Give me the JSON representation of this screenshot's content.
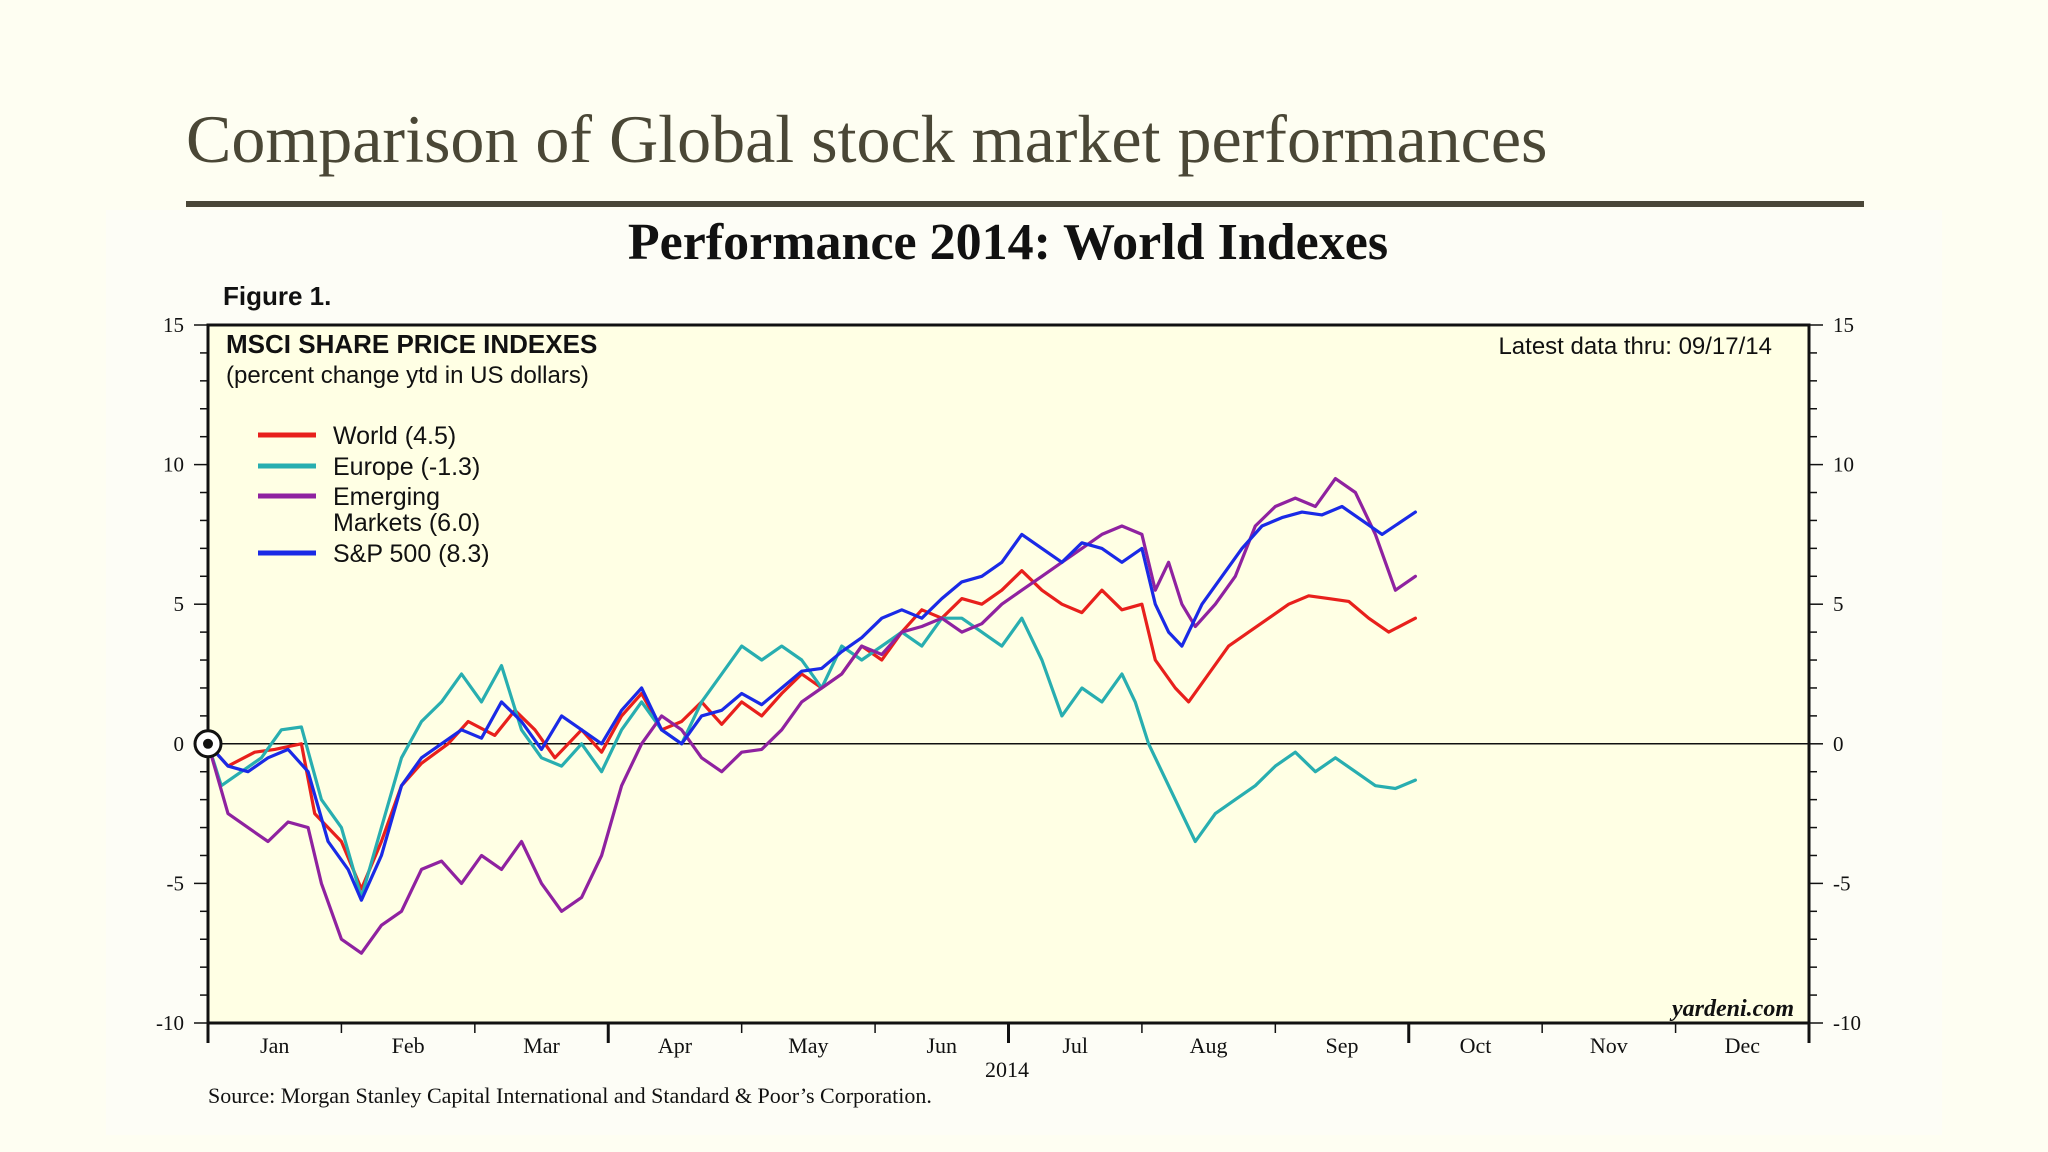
{
  "slide": {
    "title": "Comparison of Global stock market performances"
  },
  "chart_data": {
    "type": "line",
    "title": "Performance 2014: World Indexes",
    "figure_label": "Figure 1.",
    "subtitle": "MSCI SHARE PRICE INDEXES",
    "subtitle2": "(percent change ytd in US dollars)",
    "latest": "Latest data thru: 09/17/14",
    "watermark": "yardeni.com",
    "source": "Source: Morgan Stanley Capital International and Standard & Poor’s Corporation.",
    "xlabel": "2014",
    "x_domain": [
      0,
      12
    ],
    "ylim": [
      -10,
      15
    ],
    "yticks": [
      "15",
      "10",
      "5",
      "0",
      "-5",
      "-10"
    ],
    "ytick_values": [
      15,
      10,
      5,
      0,
      -5,
      -10
    ],
    "months": [
      "Jan",
      "Feb",
      "Mar",
      "Apr",
      "May",
      "Jun",
      "Jul",
      "Aug",
      "Sep",
      "Oct",
      "Nov",
      "Dec"
    ],
    "grid": false,
    "legend_position": "top-left",
    "series": [
      {
        "name": "World (4.5)",
        "color": "#e8201c",
        "points": [
          [
            0,
            0
          ],
          [
            0.15,
            -0.8
          ],
          [
            0.35,
            -0.3
          ],
          [
            0.5,
            -0.2
          ],
          [
            0.7,
            0
          ],
          [
            0.8,
            -2.5
          ],
          [
            1,
            -3.5
          ],
          [
            1.15,
            -5.2
          ],
          [
            1.3,
            -3.5
          ],
          [
            1.45,
            -1.5
          ],
          [
            1.6,
            -0.7
          ],
          [
            1.8,
            0
          ],
          [
            1.95,
            0.8
          ],
          [
            2.15,
            0.3
          ],
          [
            2.3,
            1.2
          ],
          [
            2.45,
            0.5
          ],
          [
            2.6,
            -0.5
          ],
          [
            2.8,
            0.5
          ],
          [
            2.95,
            -0.3
          ],
          [
            3.1,
            1
          ],
          [
            3.25,
            1.8
          ],
          [
            3.4,
            0.5
          ],
          [
            3.55,
            0.8
          ],
          [
            3.7,
            1.5
          ],
          [
            3.85,
            0.7
          ],
          [
            4,
            1.5
          ],
          [
            4.15,
            1
          ],
          [
            4.3,
            1.8
          ],
          [
            4.45,
            2.5
          ],
          [
            4.6,
            2
          ],
          [
            4.75,
            2.5
          ],
          [
            4.9,
            3.5
          ],
          [
            5.05,
            3
          ],
          [
            5.2,
            4
          ],
          [
            5.35,
            4.8
          ],
          [
            5.5,
            4.5
          ],
          [
            5.65,
            5.2
          ],
          [
            5.8,
            5
          ],
          [
            5.95,
            5.5
          ],
          [
            6.1,
            6.2
          ],
          [
            6.25,
            5.5
          ],
          [
            6.4,
            5
          ],
          [
            6.55,
            4.7
          ],
          [
            6.7,
            5.5
          ],
          [
            6.85,
            4.8
          ],
          [
            7,
            5
          ],
          [
            7.1,
            3
          ],
          [
            7.25,
            2
          ],
          [
            7.35,
            1.5
          ],
          [
            7.5,
            2.5
          ],
          [
            7.65,
            3.5
          ],
          [
            7.8,
            4
          ],
          [
            7.95,
            4.5
          ],
          [
            8.1,
            5
          ],
          [
            8.25,
            5.3
          ],
          [
            8.4,
            5.2
          ],
          [
            8.55,
            5.1
          ],
          [
            8.7,
            4.5
          ],
          [
            8.85,
            4
          ],
          [
            9.05,
            4.5
          ]
        ]
      },
      {
        "name": "Europe (-1.3)",
        "color": "#28aeb0",
        "points": [
          [
            0,
            0
          ],
          [
            0.1,
            -1.5
          ],
          [
            0.25,
            -1
          ],
          [
            0.4,
            -0.5
          ],
          [
            0.55,
            0.5
          ],
          [
            0.7,
            0.6
          ],
          [
            0.85,
            -2
          ],
          [
            1,
            -3
          ],
          [
            1.15,
            -5.5
          ],
          [
            1.3,
            -3
          ],
          [
            1.45,
            -0.5
          ],
          [
            1.6,
            0.8
          ],
          [
            1.75,
            1.5
          ],
          [
            1.9,
            2.5
          ],
          [
            2.05,
            1.5
          ],
          [
            2.2,
            2.8
          ],
          [
            2.35,
            0.5
          ],
          [
            2.5,
            -0.5
          ],
          [
            2.65,
            -0.8
          ],
          [
            2.8,
            0
          ],
          [
            2.95,
            -1
          ],
          [
            3.1,
            0.5
          ],
          [
            3.25,
            1.5
          ],
          [
            3.4,
            0.5
          ],
          [
            3.55,
            0
          ],
          [
            3.7,
            1.5
          ],
          [
            3.85,
            2.5
          ],
          [
            4,
            3.5
          ],
          [
            4.15,
            3
          ],
          [
            4.3,
            3.5
          ],
          [
            4.45,
            3
          ],
          [
            4.6,
            2
          ],
          [
            4.75,
            3.5
          ],
          [
            4.9,
            3
          ],
          [
            5.05,
            3.5
          ],
          [
            5.2,
            4
          ],
          [
            5.35,
            3.5
          ],
          [
            5.5,
            4.5
          ],
          [
            5.65,
            4.5
          ],
          [
            5.8,
            4
          ],
          [
            5.95,
            3.5
          ],
          [
            6.1,
            4.5
          ],
          [
            6.25,
            3
          ],
          [
            6.4,
            1
          ],
          [
            6.55,
            2
          ],
          [
            6.7,
            1.5
          ],
          [
            6.85,
            2.5
          ],
          [
            6.95,
            1.5
          ],
          [
            7.05,
            0
          ],
          [
            7.2,
            -1.5
          ],
          [
            7.3,
            -2.5
          ],
          [
            7.4,
            -3.5
          ],
          [
            7.55,
            -2.5
          ],
          [
            7.7,
            -2
          ],
          [
            7.85,
            -1.5
          ],
          [
            8,
            -0.8
          ],
          [
            8.15,
            -0.3
          ],
          [
            8.3,
            -1
          ],
          [
            8.45,
            -0.5
          ],
          [
            8.6,
            -1
          ],
          [
            8.75,
            -1.5
          ],
          [
            8.9,
            -1.6
          ],
          [
            9.05,
            -1.3
          ]
        ]
      },
      {
        "name": "Emerging Markets (6.0)",
        "color": "#8f22a0",
        "points": [
          [
            0,
            0
          ],
          [
            0.15,
            -2.5
          ],
          [
            0.3,
            -3
          ],
          [
            0.45,
            -3.5
          ],
          [
            0.6,
            -2.8
          ],
          [
            0.75,
            -3
          ],
          [
            0.85,
            -5
          ],
          [
            1,
            -7
          ],
          [
            1.15,
            -7.5
          ],
          [
            1.3,
            -6.5
          ],
          [
            1.45,
            -6
          ],
          [
            1.6,
            -4.5
          ],
          [
            1.75,
            -4.2
          ],
          [
            1.9,
            -5
          ],
          [
            2.05,
            -4
          ],
          [
            2.2,
            -4.5
          ],
          [
            2.35,
            -3.5
          ],
          [
            2.5,
            -5
          ],
          [
            2.65,
            -6
          ],
          [
            2.8,
            -5.5
          ],
          [
            2.95,
            -4
          ],
          [
            3.1,
            -1.5
          ],
          [
            3.25,
            0
          ],
          [
            3.4,
            1
          ],
          [
            3.55,
            0.5
          ],
          [
            3.7,
            -0.5
          ],
          [
            3.85,
            -1
          ],
          [
            4,
            -0.3
          ],
          [
            4.15,
            -0.2
          ],
          [
            4.3,
            0.5
          ],
          [
            4.45,
            1.5
          ],
          [
            4.6,
            2
          ],
          [
            4.75,
            2.5
          ],
          [
            4.9,
            3.5
          ],
          [
            5.05,
            3.2
          ],
          [
            5.2,
            4
          ],
          [
            5.35,
            4.2
          ],
          [
            5.5,
            4.5
          ],
          [
            5.65,
            4
          ],
          [
            5.8,
            4.3
          ],
          [
            5.95,
            5
          ],
          [
            6.1,
            5.5
          ],
          [
            6.25,
            6
          ],
          [
            6.4,
            6.5
          ],
          [
            6.55,
            7
          ],
          [
            6.7,
            7.5
          ],
          [
            6.85,
            7.8
          ],
          [
            7,
            7.5
          ],
          [
            7.1,
            5.5
          ],
          [
            7.2,
            6.5
          ],
          [
            7.3,
            5
          ],
          [
            7.4,
            4.2
          ],
          [
            7.55,
            5
          ],
          [
            7.7,
            6
          ],
          [
            7.85,
            7.8
          ],
          [
            8,
            8.5
          ],
          [
            8.15,
            8.8
          ],
          [
            8.3,
            8.5
          ],
          [
            8.45,
            9.5
          ],
          [
            8.6,
            9
          ],
          [
            8.75,
            7.5
          ],
          [
            8.9,
            5.5
          ],
          [
            9.05,
            6
          ]
        ]
      },
      {
        "name": "S&P 500 (8.3)",
        "color": "#1a2ae6",
        "points": [
          [
            0,
            0
          ],
          [
            0.15,
            -0.8
          ],
          [
            0.3,
            -1
          ],
          [
            0.45,
            -0.5
          ],
          [
            0.6,
            -0.2
          ],
          [
            0.75,
            -1
          ],
          [
            0.9,
            -3.5
          ],
          [
            1.05,
            -4.5
          ],
          [
            1.15,
            -5.6
          ],
          [
            1.3,
            -4
          ],
          [
            1.45,
            -1.5
          ],
          [
            1.6,
            -0.5
          ],
          [
            1.75,
            0
          ],
          [
            1.9,
            0.5
          ],
          [
            2.05,
            0.2
          ],
          [
            2.2,
            1.5
          ],
          [
            2.35,
            0.8
          ],
          [
            2.5,
            -0.2
          ],
          [
            2.65,
            1
          ],
          [
            2.8,
            0.5
          ],
          [
            2.95,
            0
          ],
          [
            3.1,
            1.2
          ],
          [
            3.25,
            2
          ],
          [
            3.4,
            0.5
          ],
          [
            3.55,
            0
          ],
          [
            3.7,
            1
          ],
          [
            3.85,
            1.2
          ],
          [
            4,
            1.8
          ],
          [
            4.15,
            1.4
          ],
          [
            4.3,
            2
          ],
          [
            4.45,
            2.6
          ],
          [
            4.6,
            2.7
          ],
          [
            4.75,
            3.3
          ],
          [
            4.9,
            3.8
          ],
          [
            5.05,
            4.5
          ],
          [
            5.2,
            4.8
          ],
          [
            5.35,
            4.5
          ],
          [
            5.5,
            5.2
          ],
          [
            5.65,
            5.8
          ],
          [
            5.8,
            6
          ],
          [
            5.95,
            6.5
          ],
          [
            6.1,
            7.5
          ],
          [
            6.25,
            7
          ],
          [
            6.4,
            6.5
          ],
          [
            6.55,
            7.2
          ],
          [
            6.7,
            7
          ],
          [
            6.85,
            6.5
          ],
          [
            7,
            7
          ],
          [
            7.1,
            5
          ],
          [
            7.2,
            4
          ],
          [
            7.3,
            3.5
          ],
          [
            7.45,
            5
          ],
          [
            7.6,
            6
          ],
          [
            7.75,
            7
          ],
          [
            7.9,
            7.8
          ],
          [
            8.05,
            8.1
          ],
          [
            8.2,
            8.3
          ],
          [
            8.35,
            8.2
          ],
          [
            8.5,
            8.5
          ],
          [
            8.65,
            8
          ],
          [
            8.8,
            7.5
          ],
          [
            9.05,
            8.3
          ]
        ]
      }
    ]
  }
}
